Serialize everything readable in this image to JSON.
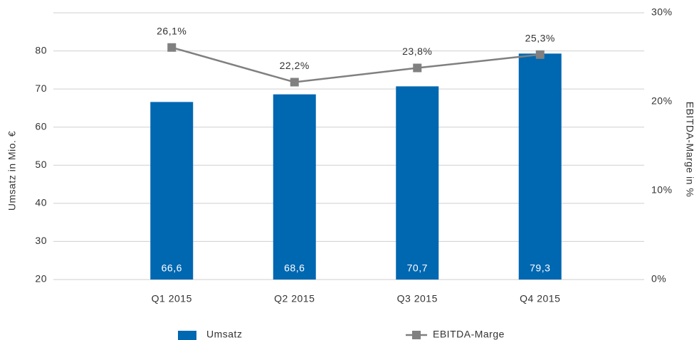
{
  "chart_data": {
    "type": "bar",
    "categories": [
      "Q1 2015",
      "Q2 2015",
      "Q3 2015",
      "Q4 2015"
    ],
    "ylabel": "Umsatz in Mio. €",
    "y2label": "EBITDA-Marge in %",
    "ylim": [
      20,
      90
    ],
    "yticks": [
      20,
      30,
      40,
      50,
      60,
      70,
      80
    ],
    "y2lim": [
      0,
      30
    ],
    "y2ticks": [
      {
        "value": 0,
        "label": "0%"
      },
      {
        "value": 10,
        "label": "10%"
      },
      {
        "value": 20,
        "label": "20%"
      },
      {
        "value": 30,
        "label": "30%"
      }
    ],
    "grid": true,
    "series": [
      {
        "name": "Umsatz",
        "type": "bar",
        "color": "#0067b1",
        "values": [
          66.6,
          68.6,
          70.7,
          79.3
        ],
        "value_labels": [
          "66,6",
          "68,6",
          "70,7",
          "79,3"
        ]
      },
      {
        "name": "EBITDA-Marge",
        "type": "line",
        "axis": "y2",
        "color": "#808080",
        "values": [
          26.1,
          22.2,
          23.8,
          25.3
        ],
        "value_labels": [
          "26,1%",
          "22,2%",
          "23,8%",
          "25,3%"
        ]
      }
    ]
  }
}
